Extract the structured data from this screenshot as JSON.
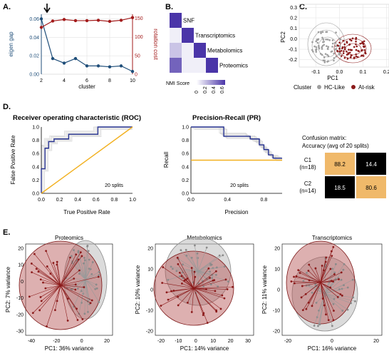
{
  "panels": {
    "A": {
      "letter": "A.",
      "ylabel_left": "eigen gap",
      "ylabel_right": "rotation cost",
      "xlabel": "cluster",
      "x_ticks": [
        "2",
        "4",
        "6",
        "8",
        "10"
      ],
      "y_left_ticks": [
        "0.00",
        "0.02",
        "0.04",
        "0.06"
      ],
      "y_right_ticks": [
        "0",
        "50",
        "100",
        "150"
      ],
      "colors": {
        "eigen": "#1f4e79",
        "rotation": "#a31b1b"
      },
      "arrow_x": 2
    },
    "B": {
      "letter": "B.",
      "rows": [
        "SNF",
        "Transcriptomics",
        "Metabolomics",
        "Proteomics"
      ],
      "legend_title": "NMI Score",
      "legend_ticks": [
        "0",
        "0.2",
        "0.4",
        "0.6"
      ]
    },
    "C": {
      "letter": "C.",
      "xlabel": "PC1",
      "ylabel": "PC2",
      "x_ticks": [
        "-0.1",
        "0.0",
        "0.1",
        "0.2"
      ],
      "y_ticks": [
        "-0.2",
        "-0.1",
        "0.0",
        "0.1",
        "0.2",
        "0.3"
      ],
      "legend_title": "Cluster",
      "legend_items": [
        {
          "label": "HC-Like",
          "color": "#9e9e9e"
        },
        {
          "label": "At-risk",
          "color": "#8b1a1a"
        }
      ]
    },
    "D": {
      "letter": "D.",
      "roc": {
        "title": "Receiver operating characteristic (ROC)",
        "xlabel": "True Positive Rate",
        "ylabel": "False Positive Rate",
        "ticks": [
          "0.0",
          "0.2",
          "0.4",
          "0.6",
          "0.8",
          "1.0"
        ],
        "annotation": "20 splits"
      },
      "pr": {
        "title": "Precision-Recall (PR)",
        "xlabel": "Precision",
        "ylabel": "Recall",
        "x_ticks": [
          "0.0",
          "0.4",
          "0.8"
        ],
        "y_ticks": [
          "0.0",
          "0.2",
          "0.4",
          "0.6",
          "0.8",
          "1.0"
        ],
        "annotation": "20 splits"
      },
      "confusion": {
        "title_line1": "Confusion matrix:",
        "title_line2": "Accuracy (avg of 20 splits)",
        "rows": [
          {
            "label": "C1",
            "n": "(n=18)",
            "cells": [
              "88.2",
              "14.4"
            ]
          },
          {
            "label": "C2",
            "n": "(n=14)",
            "cells": [
              "18.5",
              "80.6"
            ]
          }
        ],
        "colors": {
          "high": "#f0b96a",
          "low": "#000000"
        }
      }
    },
    "E": {
      "letter": "E.",
      "plots": [
        {
          "title": "Proteomics",
          "xlabel": "PC1: 36% variance",
          "ylabel": "PC2: 7% variance",
          "x_ticks": [
            "-40",
            "-20",
            "0",
            "20"
          ],
          "y_ticks": [
            "-30",
            "-20",
            "-10",
            "0",
            "10",
            "20"
          ]
        },
        {
          "title": "Metabolomics",
          "xlabel": "PC1: 14% variance",
          "ylabel": "PC2: 10% variance",
          "x_ticks": [
            "-20",
            "-10",
            "0",
            "10",
            "20",
            "30"
          ],
          "y_ticks": [
            "-20",
            "-10",
            "0",
            "10",
            "20"
          ]
        },
        {
          "title": "Transcriptomics",
          "xlabel": "PC1: 16% variance",
          "ylabel": "PC2: 11% variance",
          "x_ticks": [
            "-20",
            "0",
            "20"
          ],
          "y_ticks": [
            "-20",
            "-10",
            "0",
            "10",
            "20"
          ]
        }
      ]
    }
  },
  "chart_data": [
    {
      "type": "line",
      "x": [
        2,
        3,
        4,
        5,
        6,
        7,
        8,
        9,
        10
      ],
      "series": [
        {
          "values": [
            0.06,
            0.017,
            0.012,
            0.017,
            0.009,
            0.009,
            0.008,
            0.009,
            0.003
          ],
          "axis": "left"
        },
        {
          "values": [
            125,
            142,
            146,
            143,
            143,
            144,
            141,
            144,
            151
          ],
          "axis": "right"
        }
      ],
      "xlabel": "cluster",
      "ylabel": "eigen gap",
      "y2label": "rotation cost",
      "xlim": [
        2,
        10
      ],
      "ylim": [
        0,
        0.065
      ],
      "y2lim": [
        0,
        160
      ]
    },
    {
      "type": "heatmap",
      "rows": [
        "SNF",
        "Transcriptomics",
        "Metabolomics",
        "Proteomics"
      ],
      "values": [
        [
          0.62,
          0.05,
          0.05,
          0.05
        ],
        [
          0.05,
          0.62,
          0.05,
          0.05
        ],
        [
          0.18,
          0.05,
          0.62,
          0.05
        ],
        [
          0.48,
          0.05,
          0.05,
          0.62
        ]
      ],
      "legend_title": "NMI Score"
    },
    {
      "type": "line",
      "title": "Receiver operating characteristic (ROC)",
      "xlabel": "True Positive Rate",
      "ylabel": "False Positive Rate",
      "series": [
        {
          "x": [
            0.0,
            0.0,
            0.04,
            0.04,
            0.08,
            0.08,
            0.14,
            0.14,
            0.3,
            0.3,
            0.62,
            0.62,
            1.0
          ],
          "y": [
            0.0,
            0.37,
            0.37,
            0.68,
            0.68,
            0.78,
            0.78,
            0.82,
            0.82,
            0.89,
            0.89,
            1.0,
            1.0
          ]
        },
        {
          "x": [
            0,
            1
          ],
          "y": [
            0,
            1
          ]
        }
      ],
      "xlim": [
        0,
        1
      ],
      "ylim": [
        0,
        1
      ]
    },
    {
      "type": "line",
      "title": "Precision-Recall (PR)",
      "xlabel": "Precision",
      "ylabel": "Recall",
      "series": [
        {
          "x": [
            0.0,
            0.36,
            0.36,
            0.65,
            0.65,
            0.75,
            0.75,
            0.8,
            0.8,
            0.85,
            0.85,
            0.9,
            0.9,
            1.0
          ],
          "y": [
            1.0,
            1.0,
            0.86,
            0.86,
            0.82,
            0.82,
            0.73,
            0.73,
            0.66,
            0.66,
            0.58,
            0.58,
            0.53,
            0.53
          ]
        },
        {
          "x": [
            0,
            1
          ],
          "y": [
            0.5,
            0.5
          ]
        }
      ],
      "xlim": [
        0,
        1
      ],
      "ylim": [
        0,
        1
      ]
    },
    {
      "type": "table",
      "rows": [
        "C1",
        "C2"
      ],
      "values": [
        [
          88.2,
          14.4
        ],
        [
          18.5,
          80.6
        ]
      ]
    }
  ]
}
